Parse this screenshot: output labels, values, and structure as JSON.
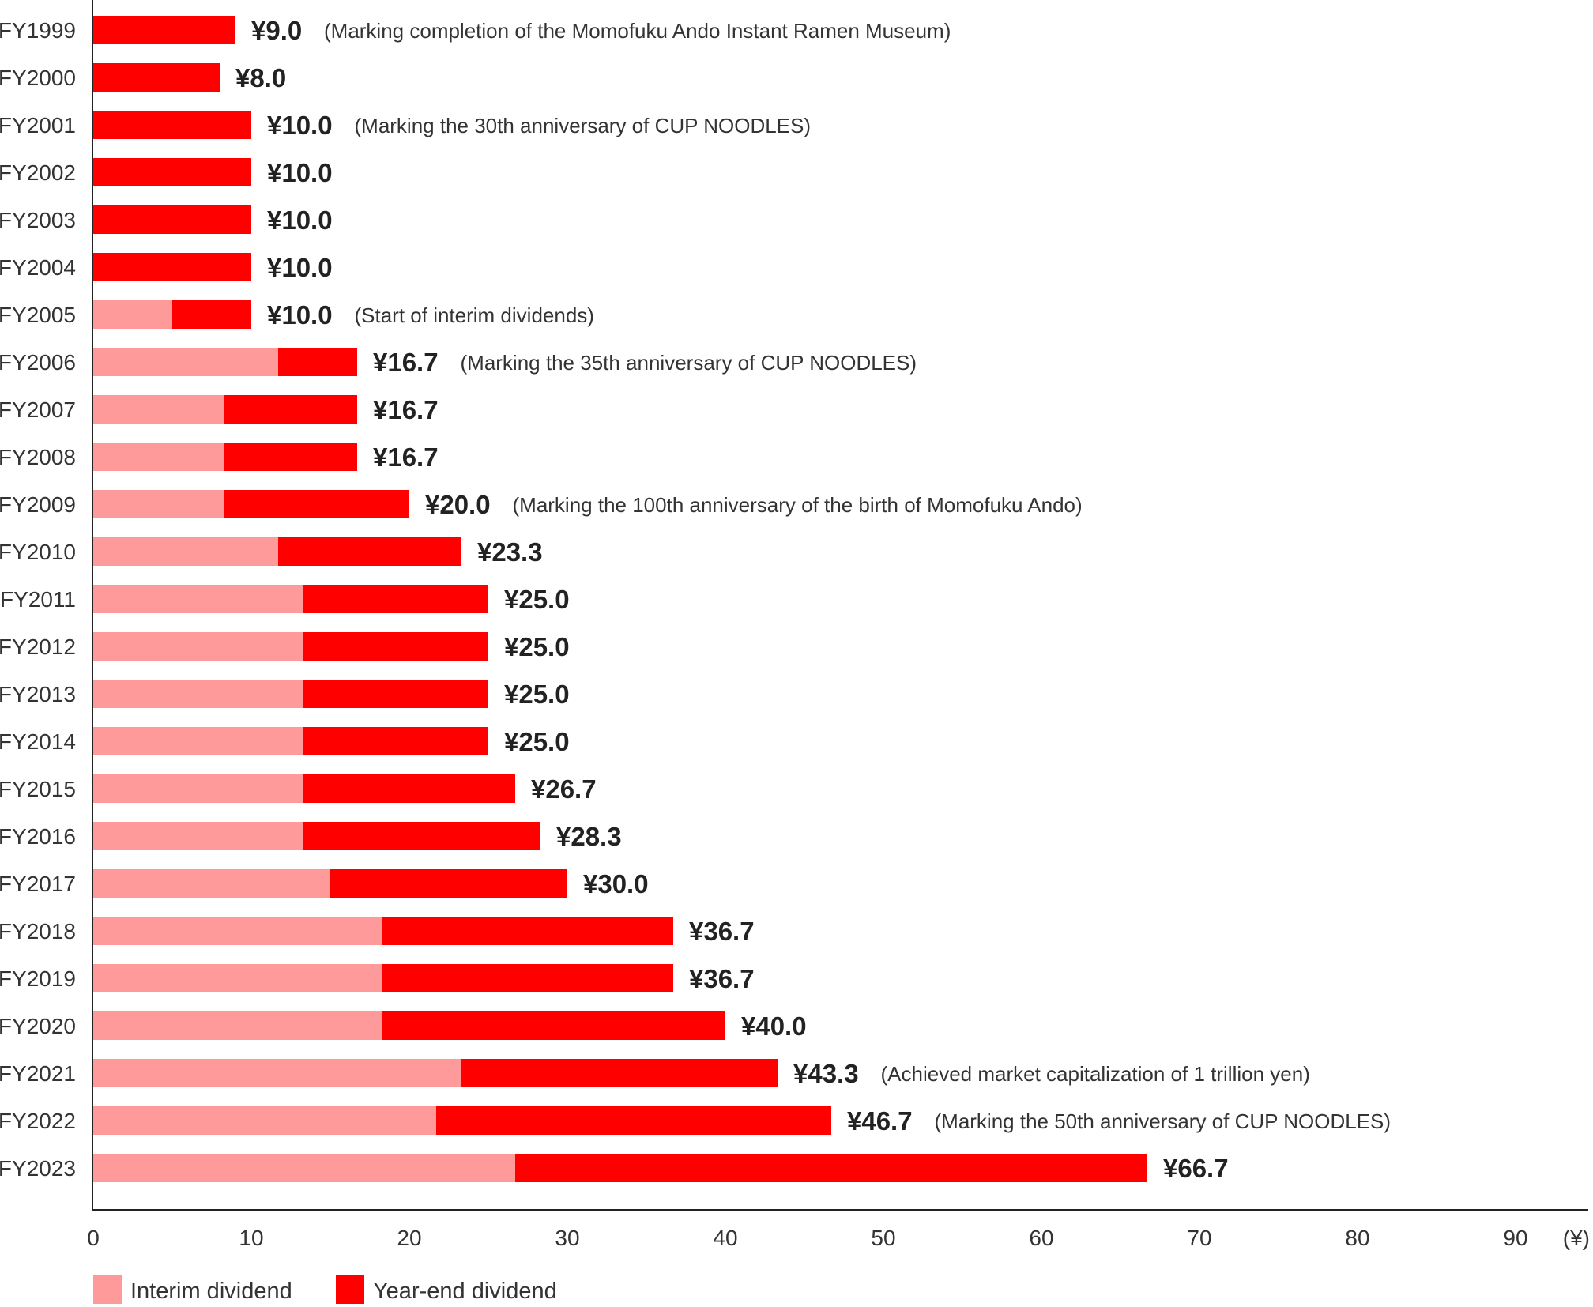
{
  "chart_data": {
    "type": "bar",
    "orientation": "horizontal",
    "stacked": true,
    "title": "",
    "xlabel": "",
    "ylabel": "",
    "unit": "(¥)",
    "xlim": [
      0,
      90
    ],
    "xticks": [
      "0",
      "10",
      "20",
      "30",
      "40",
      "50",
      "60",
      "70",
      "80",
      "90"
    ],
    "grid": false,
    "legend_position": "bottom-left",
    "categories": [
      "FY1999",
      "FY2000",
      "FY2001",
      "FY2002",
      "FY2003",
      "FY2004",
      "FY2005",
      "FY2006",
      "FY2007",
      "FY2008",
      "FY2009",
      "FY2010",
      "FY2011",
      "FY2012",
      "FY2013",
      "FY2014",
      "FY2015",
      "FY2016",
      "FY2017",
      "FY2018",
      "FY2019",
      "FY2020",
      "FY2021",
      "FY2022",
      "FY2023"
    ],
    "series": [
      {
        "name": "Interim dividend",
        "color": "#ff9a9a",
        "values": [
          0,
          0,
          0,
          0,
          0,
          0,
          5.0,
          11.7,
          8.3,
          8.3,
          8.3,
          11.7,
          13.3,
          13.3,
          13.3,
          13.3,
          13.3,
          13.3,
          15.0,
          18.3,
          18.3,
          18.3,
          23.3,
          21.7,
          26.7
        ]
      },
      {
        "name": "Year-end dividend",
        "color": "#ff0000",
        "values": [
          9.0,
          8.0,
          10.0,
          10.0,
          10.0,
          10.0,
          5.0,
          5.0,
          8.4,
          8.4,
          11.7,
          11.6,
          11.7,
          11.7,
          11.7,
          11.7,
          13.4,
          15.0,
          15.0,
          18.4,
          18.4,
          21.7,
          20.0,
          25.0,
          40.0
        ]
      }
    ],
    "total_labels": [
      "¥9.0",
      "¥8.0",
      "¥10.0",
      "¥10.0",
      "¥10.0",
      "¥10.0",
      "¥10.0",
      "¥16.7",
      "¥16.7",
      "¥16.7",
      "¥20.0",
      "¥23.3",
      "¥25.0",
      "¥25.0",
      "¥25.0",
      "¥25.0",
      "¥26.7",
      "¥28.3",
      "¥30.0",
      "¥36.7",
      "¥36.7",
      "¥40.0",
      "¥43.3",
      "¥46.7",
      "¥66.7"
    ],
    "annotations": [
      "(Marking completion of the Momofuku Ando Instant Ramen Museum)",
      "",
      "(Marking the 30th anniversary of CUP NOODLES)",
      "",
      "",
      "",
      "(Start of interim dividends)",
      "(Marking the 35th anniversary of CUP NOODLES)",
      "",
      "",
      "(Marking the 100th anniversary of the birth of Momofuku Ando)",
      "",
      "",
      "",
      "",
      "",
      "",
      "",
      "",
      "",
      "",
      "",
      "(Achieved market capitalization of 1 trillion yen)",
      "(Marking the 50th anniversary of CUP NOODLES)",
      ""
    ]
  }
}
